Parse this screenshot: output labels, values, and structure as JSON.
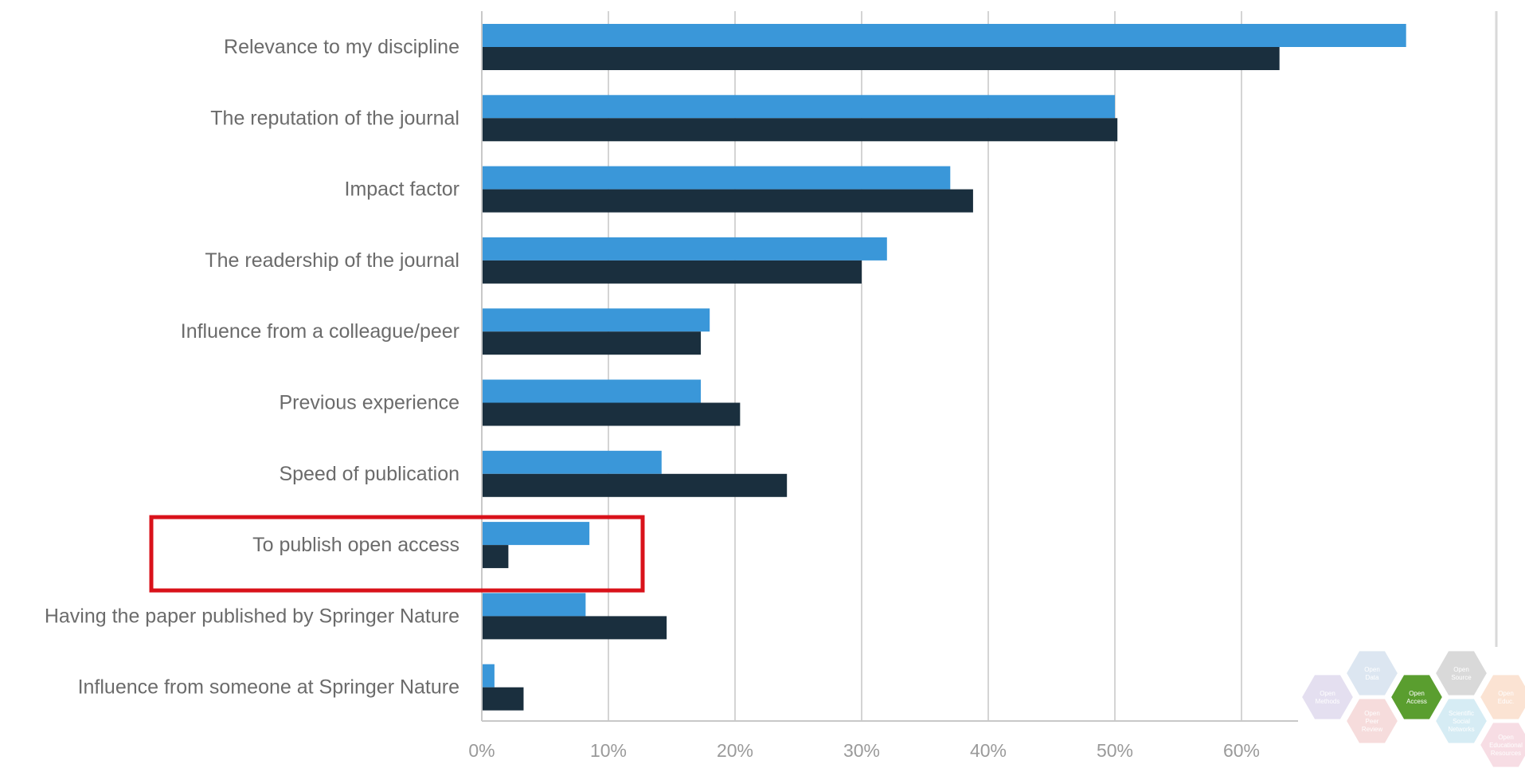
{
  "chart_data": {
    "type": "bar",
    "orientation": "horizontal",
    "categories": [
      "Relevance to my discipline",
      "The reputation of the journal",
      "Impact factor",
      "The readership of the journal",
      "Influence from a colleague/peer",
      "Previous experience",
      "Speed of publication",
      "To publish open access",
      "Having the paper published by Springer Nature",
      "Influence from someone at Springer Nature"
    ],
    "series": [
      {
        "color": "#3a97d9",
        "values": [
          73,
          50,
          37,
          32,
          18,
          17.3,
          14.2,
          8.5,
          8.2,
          1
        ]
      },
      {
        "color": "#1a2f3e",
        "values": [
          63,
          50.2,
          38.8,
          30,
          17.3,
          20.4,
          24.1,
          2.1,
          14.6,
          3.3
        ]
      }
    ],
    "xlim": [
      0,
      70
    ],
    "xticks": [
      "0%",
      "10%",
      "20%",
      "30%",
      "40%",
      "50%",
      "60%"
    ],
    "grid": "vertical",
    "highlight": {
      "category": "To publish open access",
      "color": "#d9121a"
    }
  },
  "logo": {
    "hexagons": [
      {
        "label": "Open Data",
        "color": "#dce6f1"
      },
      {
        "label": "Open Source",
        "color": "#d9d9d9"
      },
      {
        "label": "Open Methods",
        "color": "#e4dff0"
      },
      {
        "label": "Open Access",
        "color": "#5a9e2f"
      },
      {
        "label": "Open Educ.",
        "color": "#fbe3d3"
      },
      {
        "label": "Open Peer Review",
        "color": "#f6dcdc"
      },
      {
        "label": "Scientific Social Networks",
        "color": "#d6ecf4"
      },
      {
        "label": "Open Educational Resources",
        "color": "#f7dde4"
      }
    ]
  }
}
